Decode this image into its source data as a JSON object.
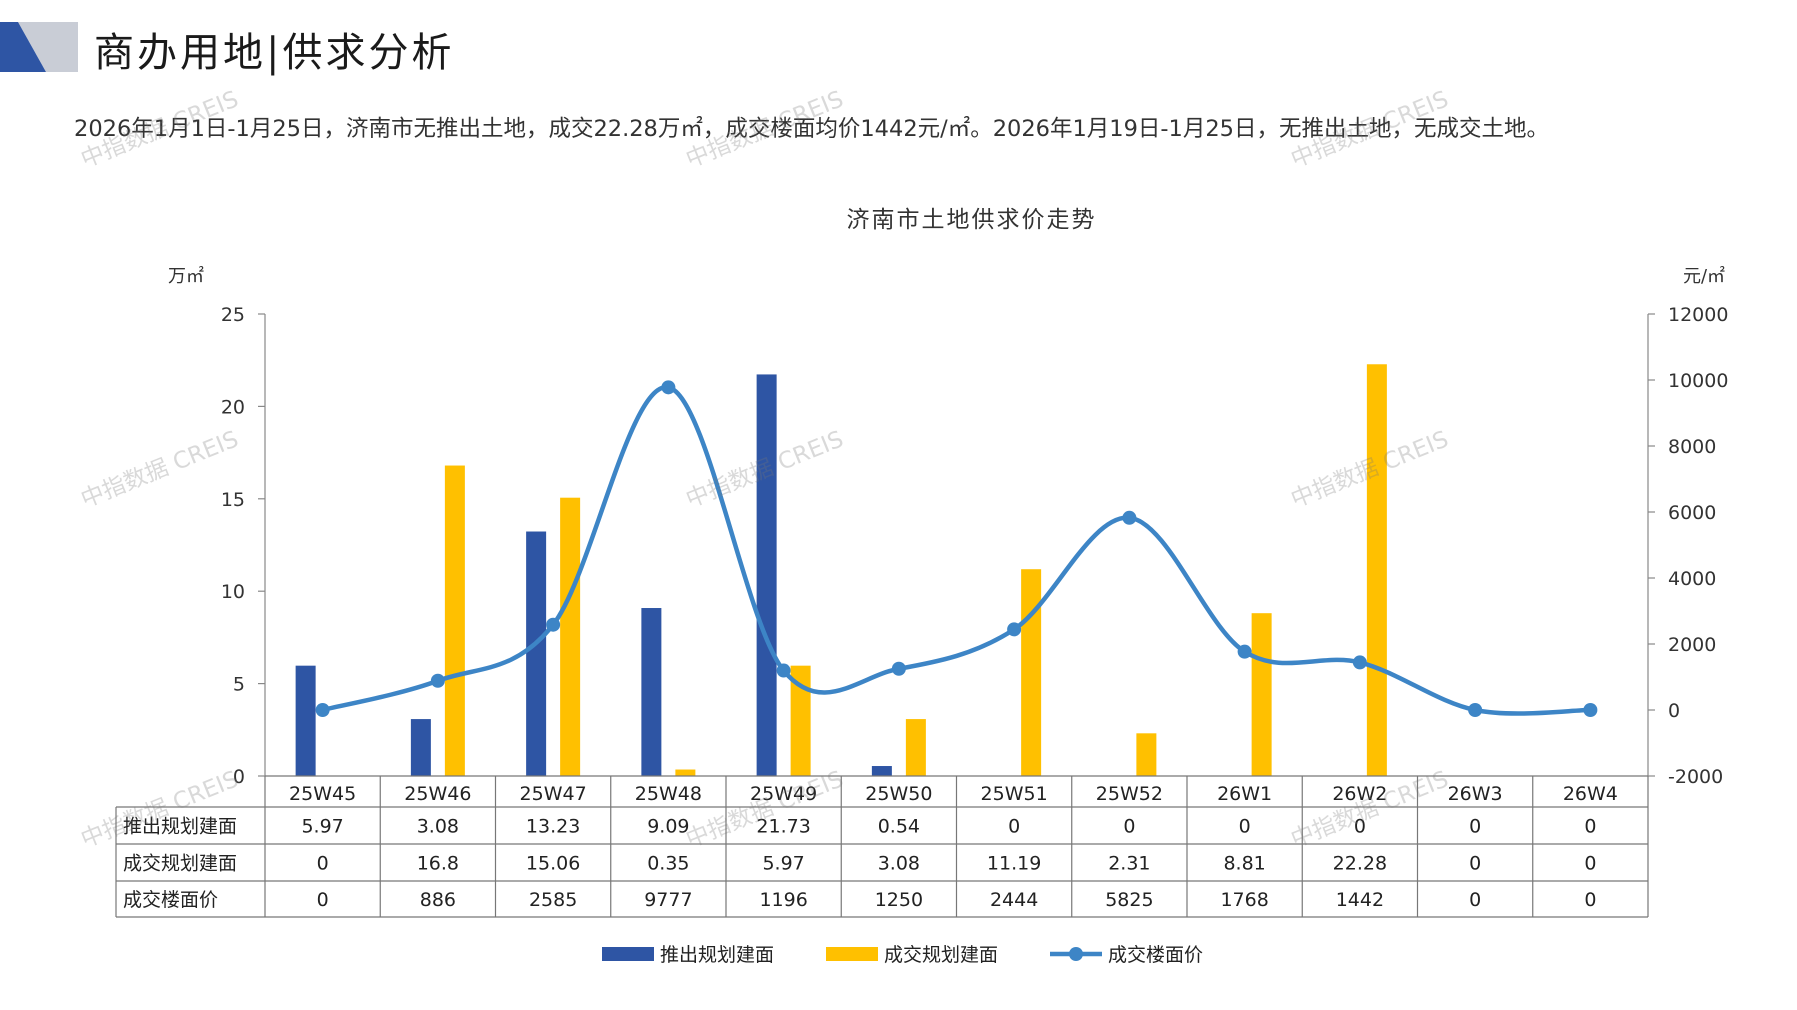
{
  "page": {
    "title": "商办用地|供求分析",
    "summary": "2026年1月1日-1月25日，济南市无推出土地，成交22.28万㎡，成交楼面均价1442元/㎡。2026年1月19日-1月25日，无推出土地，无成交土地。",
    "watermark": "中指数据 CREIS"
  },
  "colors": {
    "supply": "#2E55A4",
    "deal": "#FFC000",
    "price": "#3D85C6",
    "logo_dark": "#2E55A4",
    "logo_light": "#C9CDD6"
  },
  "chart_data": {
    "type": "bar",
    "title": "济南市土地供求价走势",
    "y_left_unit": "万㎡",
    "y_right_unit": "元/㎡",
    "ylim_left": [
      0,
      25
    ],
    "yticks_left": [
      0,
      5,
      10,
      15,
      20,
      25
    ],
    "ylim_right": [
      -2000,
      12000
    ],
    "yticks_right": [
      -2000,
      0,
      2000,
      4000,
      6000,
      8000,
      10000,
      12000
    ],
    "categories": [
      "25W45",
      "25W46",
      "25W47",
      "25W48",
      "25W49",
      "25W50",
      "25W51",
      "25W52",
      "26W1",
      "26W2",
      "26W3",
      "26W4"
    ],
    "series": [
      {
        "name": "推出规划建面",
        "type": "bar",
        "axis": "left",
        "values": [
          5.97,
          3.08,
          13.23,
          9.09,
          21.73,
          0.54,
          0,
          0,
          0,
          0,
          0,
          0
        ]
      },
      {
        "name": "成交规划建面",
        "type": "bar",
        "axis": "left",
        "values": [
          0,
          16.8,
          15.06,
          0.35,
          5.97,
          3.08,
          11.19,
          2.31,
          8.81,
          22.28,
          0,
          0
        ]
      },
      {
        "name": "成交楼面价",
        "type": "line",
        "axis": "right",
        "values": [
          0,
          886,
          2585,
          9777,
          1196,
          1250,
          2444,
          5825,
          1768,
          1442,
          0,
          0
        ]
      }
    ],
    "table_display": [
      [
        "5.97",
        "3.08",
        "13.23",
        "9.09",
        "21.73",
        "0.54",
        "0",
        "0",
        "0",
        "0",
        "0",
        "0"
      ],
      [
        "0",
        "16.8",
        "15.06",
        "0.35",
        "5.97",
        "3.08",
        "11.19",
        "2.31",
        "8.81",
        "22.28",
        "0",
        "0"
      ],
      [
        "0",
        "886",
        "2585",
        "9777",
        "1196",
        "1250",
        "2444",
        "5825",
        "1768",
        "1442",
        "0",
        "0"
      ]
    ],
    "legend_position": "bottom",
    "grid": false
  }
}
